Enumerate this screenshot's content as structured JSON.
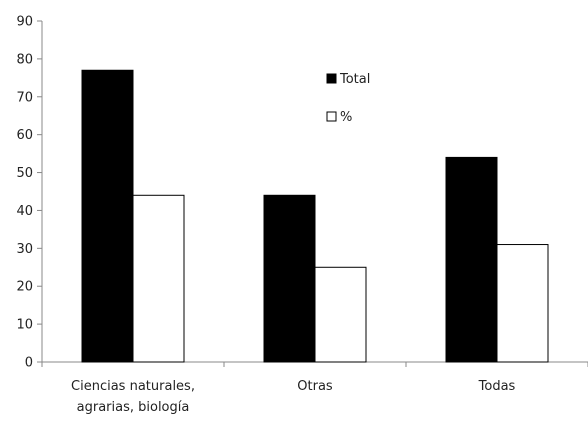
{
  "chart_data": {
    "type": "bar",
    "categories": [
      "Ciencias naturales,\nagrarias, biología",
      "Otras",
      "Todas"
    ],
    "series": [
      {
        "name": "Total",
        "values": [
          77,
          44,
          54
        ],
        "color": "#000000"
      },
      {
        "name": "%",
        "values": [
          44,
          25,
          31
        ],
        "color": "#ffffff"
      }
    ],
    "ylim": [
      0,
      90
    ],
    "yticks": [
      0,
      10,
      20,
      30,
      40,
      50,
      60,
      70,
      80,
      90
    ],
    "grid": false,
    "legend_position": "top-center"
  }
}
